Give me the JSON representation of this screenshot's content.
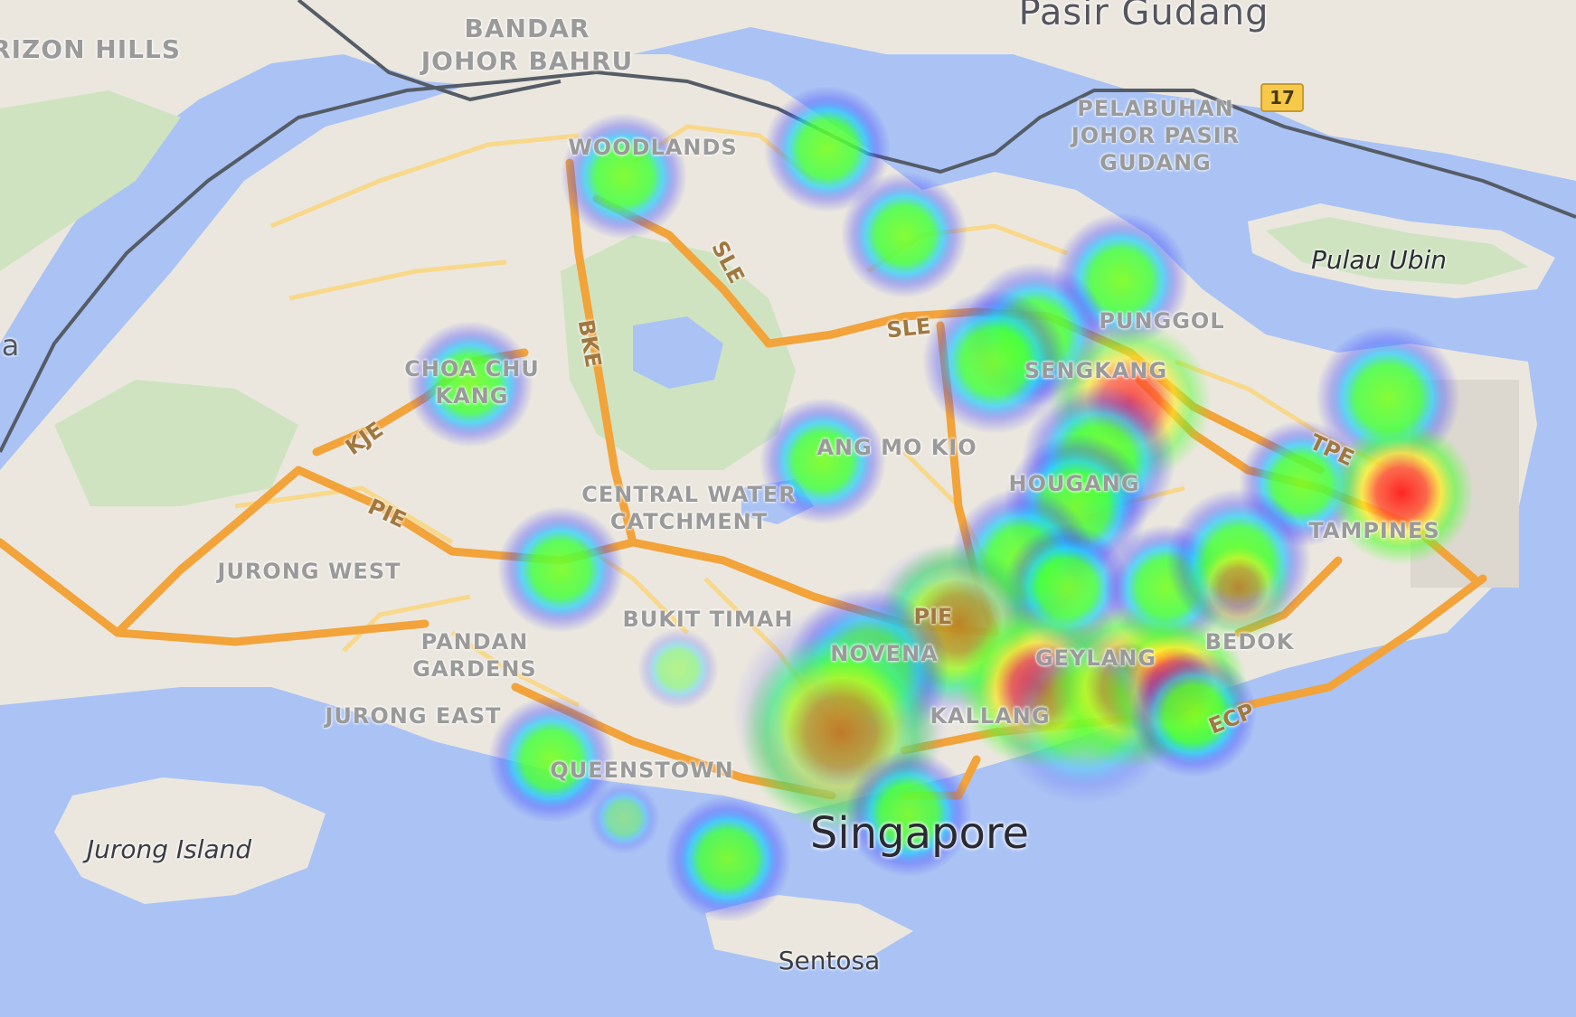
{
  "map": {
    "colors": {
      "water": "#aac3f4",
      "land": "#ebe7df",
      "park": "#cfe3c1",
      "road_major": "#f2a33a",
      "road_minor": "#f8d88a",
      "border": "#555c66",
      "heat_low": "#4455ff",
      "heat_mid": "#66ff33",
      "heat_high": "#ff2a2a"
    },
    "labels": {
      "pasir_gudang": "Pasir Gudang",
      "bandar": "BANDAR",
      "johor_bahru": "JOHOR BAHRU",
      "horizon_hills": "RIZON HILLS",
      "pelabuhan": "PELABUHAN",
      "johor_pasir": "JOHOR PASIR",
      "gudang": "GUDANG",
      "pulau_ubin": "Pulau Ubin",
      "woodlands": "WOODLANDS",
      "punggol": "PUNGGOL",
      "sengkang": "SENGKANG",
      "choa_chu": "CHOA CHU",
      "kang": "KANG",
      "ang_mo_kio": "ANG MO KIO",
      "hougang": "HOUGANG",
      "central_water": "CENTRAL WATER",
      "catchment": "CATCHMENT",
      "tampines": "TAMPINES",
      "jurong_west": "JURONG WEST",
      "bukit_timah": "BUKIT TIMAH",
      "pandan": "PANDAN",
      "gardens": "GARDENS",
      "novena": "NOVENA",
      "geylang": "GEYLANG",
      "bedok": "BEDOK",
      "jurong_east": "JURONG EAST",
      "kallang": "KALLANG",
      "queenstown": "QUEENSTOWN",
      "jurong_island": "Jurong Island",
      "singapore": "Singapore",
      "sentosa": "Sentosa",
      "left_edge": "a"
    },
    "highways": {
      "sle_1": "SLE",
      "sle_2": "SLE",
      "bke": "BKE",
      "kje": "KJE",
      "pie_1": "PIE",
      "pie_2": "PIE",
      "tpe": "TPE",
      "ecp": "ECP",
      "route_17": "17"
    }
  }
}
